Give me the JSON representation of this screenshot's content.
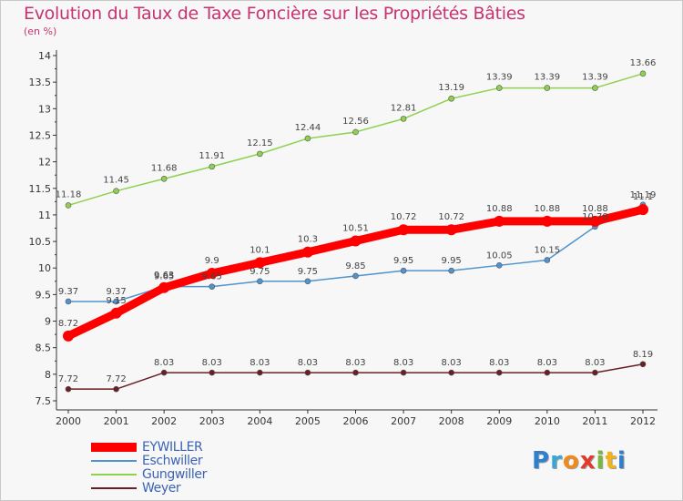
{
  "title": "Evolution du Taux de Taxe Foncière sur les Propriétés Bâties",
  "subtitle": "(en %)",
  "logo": {
    "letters": [
      "P",
      "r",
      "o",
      "x",
      "i",
      "t",
      "i"
    ],
    "colors": [
      "#2f7fcf",
      "#3aa6d8",
      "#f08a1c",
      "#e23a2b",
      "#7ab83a",
      "#f0b31c",
      "#2f7fcf"
    ]
  },
  "chart_data": {
    "type": "line",
    "x": [
      "2000",
      "2001",
      "2002",
      "2003",
      "2004",
      "2005",
      "2006",
      "2007",
      "2008",
      "2009",
      "2010",
      "2011",
      "2012"
    ],
    "ylim": [
      7.5,
      14
    ],
    "yticks": [
      "7.5",
      "8",
      "8.5",
      "9",
      "9.5",
      "10",
      "10.5",
      "11",
      "11.5",
      "12",
      "12.5",
      "13",
      "13.5",
      "14"
    ],
    "grid": false,
    "legend_position": "bottom-left",
    "series": [
      {
        "name": "EYWILLER",
        "color": "#ff0000",
        "values": [
          8.72,
          9.15,
          9.63,
          9.9,
          10.1,
          10.3,
          10.51,
          10.72,
          10.72,
          10.88,
          10.88,
          10.88,
          11.1
        ],
        "labels": [
          "8.72",
          "9.15",
          "9.63",
          "9.9",
          "10.1",
          "10.3",
          "10.51",
          "10.72",
          "10.72",
          "10.88",
          "10.88",
          "10.88",
          "11.1"
        ]
      },
      {
        "name": "Eschwiller",
        "color": "#4f93cf",
        "values": [
          9.37,
          9.37,
          9.65,
          9.65,
          9.75,
          9.75,
          9.85,
          9.95,
          9.95,
          10.05,
          10.15,
          10.78,
          11.19
        ],
        "labels": [
          "9.37",
          "9.37",
          "9.65",
          "9.65",
          "9.75",
          "9.75",
          "9.85",
          "9.95",
          "9.95",
          "10.05",
          "10.15",
          "10.78",
          "11.19"
        ]
      },
      {
        "name": "Gungwiller",
        "color": "#8ed14e",
        "values": [
          11.18,
          11.45,
          11.68,
          11.91,
          12.15,
          12.44,
          12.56,
          12.81,
          13.19,
          13.39,
          13.39,
          13.39,
          13.66
        ],
        "labels": [
          "11.18",
          "11.45",
          "11.68",
          "11.91",
          "12.15",
          "12.44",
          "12.56",
          "12.81",
          "13.19",
          "13.39",
          "13.39",
          "13.39",
          "13.66"
        ]
      },
      {
        "name": "Weyer",
        "color": "#6b1f24",
        "values": [
          7.72,
          7.72,
          8.03,
          8.03,
          8.03,
          8.03,
          8.03,
          8.03,
          8.03,
          8.03,
          8.03,
          8.03,
          8.19
        ],
        "labels": [
          "7.72",
          "7.72",
          "8.03",
          "8.03",
          "8.03",
          "8.03",
          "8.03",
          "8.03",
          "8.03",
          "8.03",
          "8.03",
          "8.03",
          "8.19"
        ]
      }
    ]
  }
}
